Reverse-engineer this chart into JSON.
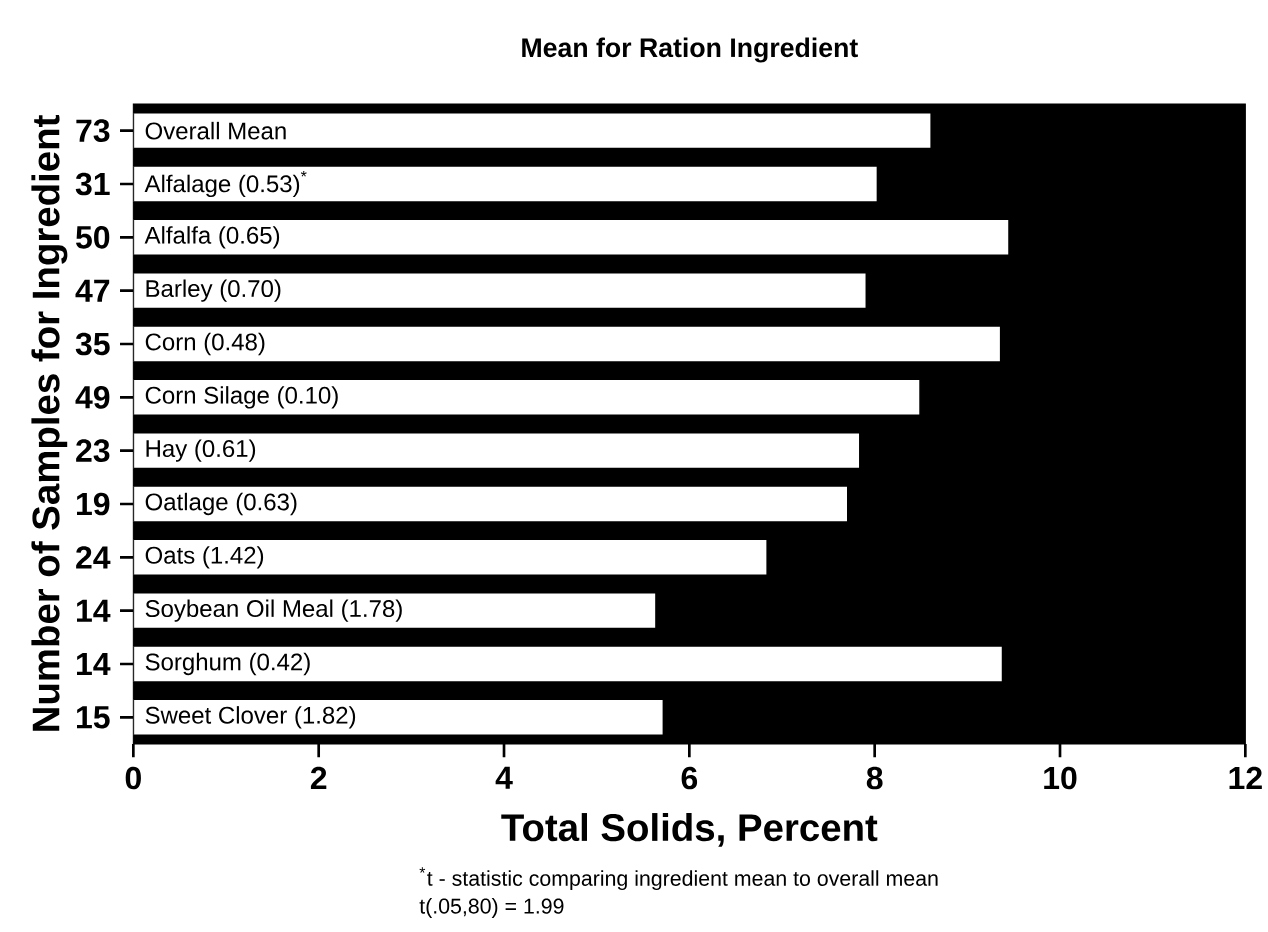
{
  "chart_data": {
    "type": "bar",
    "orientation": "horizontal",
    "title": "Mean for Ration Ingredient",
    "xlabel": "Total Solids, Percent",
    "ylabel": "Number of Samples for Ingredient",
    "categories": [
      "Overall Mean",
      "Alfalage (0.53)$^{*}$",
      "Alfalfa (0.65)",
      "Barley (0.70)",
      "Corn (0.48)",
      "Corn Silage (0.10)",
      "Hay (0.61)",
      "Oatlage (0.63)",
      "Oats (1.42)",
      "Soybean Oil Meal (1.78)",
      "Sorghum (0.42)",
      "Sweet Clover (1.82)"
    ],
    "values": [
      8.61,
      8.03,
      9.45,
      7.91,
      9.36,
      8.49,
      7.84,
      7.71,
      6.84,
      5.64,
      9.38,
      5.72
    ],
    "color": "#ffffff",
    "xlim": [
      0,
      12
    ],
    "xticks": [
      0,
      2,
      4,
      6,
      8,
      10,
      12
    ],
    "annotations": [
      "73",
      "31",
      "50",
      "47",
      "35",
      "49",
      "23",
      "19",
      "24",
      "14",
      "14",
      "15",
      "$^{*}$t - statistic comparing ingredient mean to overall mean",
      "t(.05,80) = 1.99"
    ]
  }
}
